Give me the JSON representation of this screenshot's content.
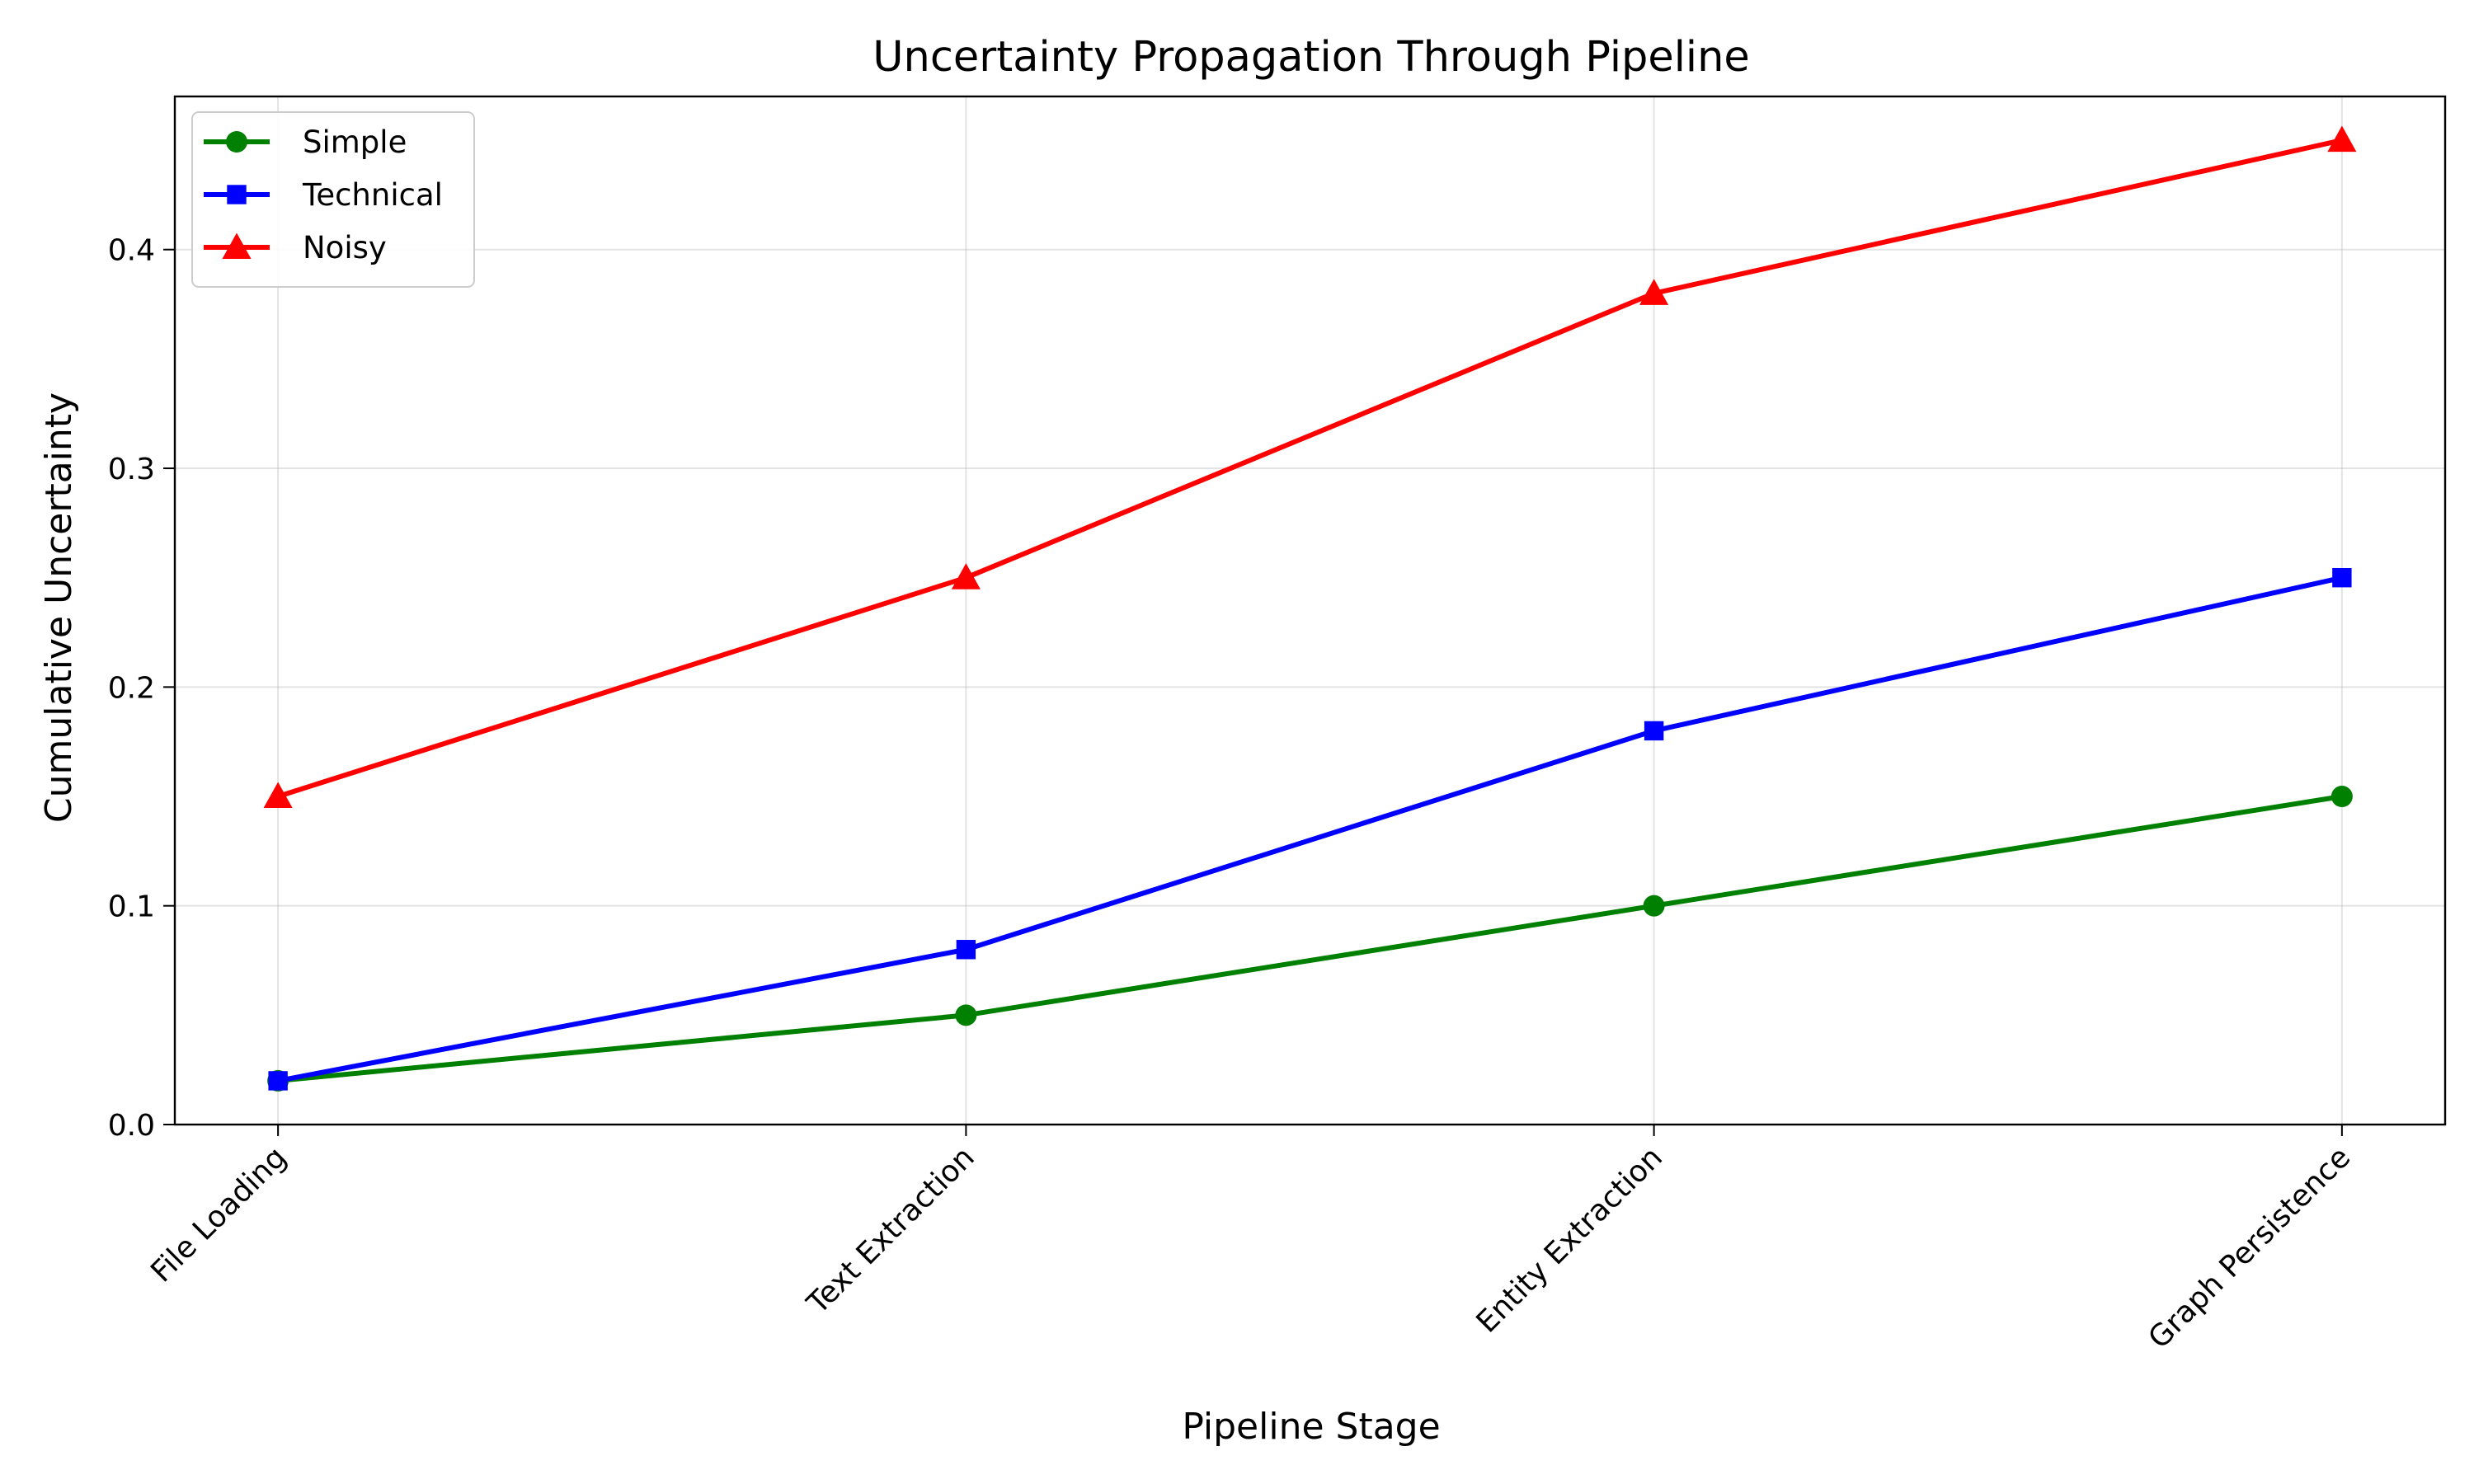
{
  "chart_data": {
    "type": "line",
    "title": "Uncertainty Propagation Through Pipeline",
    "xlabel": "Pipeline Stage",
    "ylabel": "Cumulative Uncertainty",
    "categories": [
      "File Loading",
      "Text Extraction",
      "Entity Extraction",
      "Graph Persistence"
    ],
    "ylim": [
      0,
      0.47
    ],
    "yticks": [
      "0.0",
      "0.1",
      "0.2",
      "0.3",
      "0.4"
    ],
    "grid": true,
    "legend_position": "top-left",
    "series": [
      {
        "name": "Simple",
        "values": [
          0.02,
          0.05,
          0.1,
          0.15
        ],
        "color": "#008000",
        "marker": "circle"
      },
      {
        "name": "Technical",
        "values": [
          0.02,
          0.08,
          0.18,
          0.25
        ],
        "color": "#0000ff",
        "marker": "square"
      },
      {
        "name": "Noisy",
        "values": [
          0.15,
          0.25,
          0.38,
          0.45
        ],
        "color": "#ff0000",
        "marker": "triangle"
      }
    ]
  }
}
